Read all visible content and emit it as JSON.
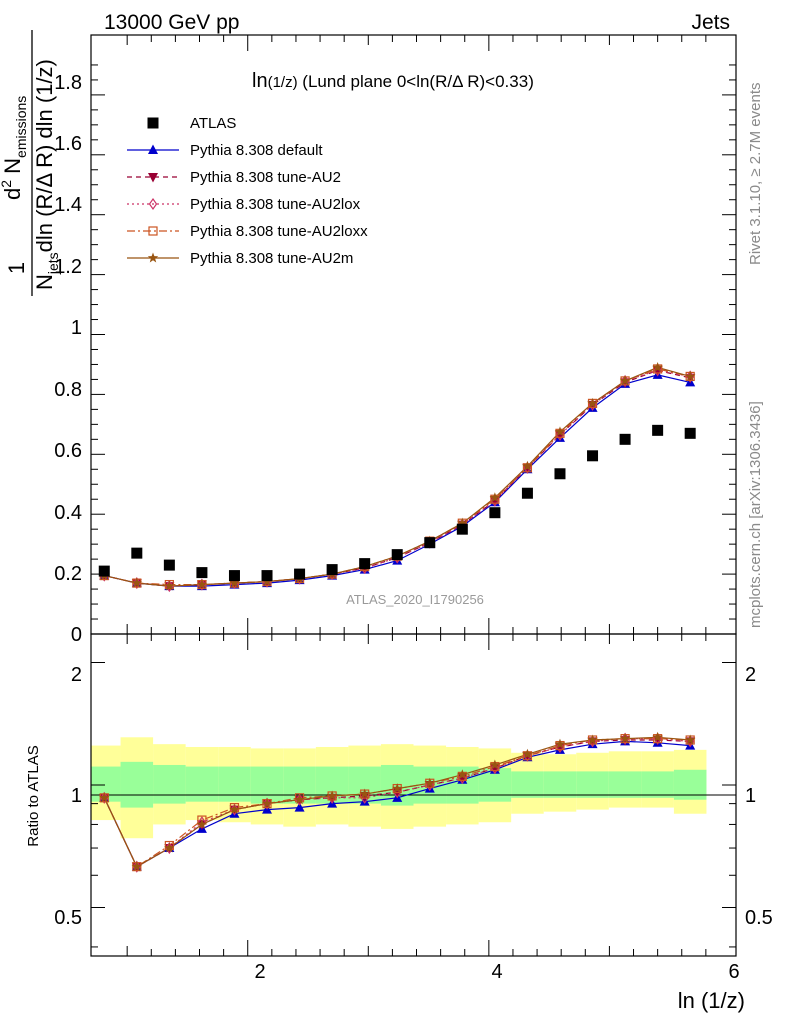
{
  "header": {
    "left": "13000 GeV pp",
    "right": "Jets"
  },
  "side_labels": {
    "rivet": "Rivet 3.1.10, ≥ 2.7M events",
    "mcplots": "mcplots.cern.ch [arXiv:1306.3436]"
  },
  "watermark": "ATLAS_2020_I1790256",
  "chart_data": {
    "type": "scatter",
    "title": "ln(1/z) (Lund plane 0<ln(R/Δ R)<0.33)",
    "title_main": "ln",
    "title_sub": "(1/z)",
    "title_rest": " (Lund plane 0<ln(R/Δ R)<0.33)",
    "xlabel": "ln (1/z)",
    "ylabel_main": "d² N_emissions / N_jets dln (R/Δ R) dln (1/z)",
    "ylabel_parts": {
      "one": "1",
      "n": "N",
      "jets": "jets",
      "dln1": "dln (R/Δ R) dln (1/z)",
      "d2": "d",
      "two": "2",
      "n2": " N",
      "emissions": "emissions"
    },
    "ylabel_ratio": "Ratio to ATLAS",
    "xlim": [
      0.7,
      6.05
    ],
    "ylim_main": [
      0,
      2.0
    ],
    "ylim_ratio": [
      0.38,
      2.35
    ],
    "x_ticks": [
      "2",
      "4",
      "6"
    ],
    "y_ticks_main": [
      "0",
      "0.2",
      "0.4",
      "0.6",
      "0.8",
      "1",
      "1.2",
      "1.4",
      "1.6",
      "1.8"
    ],
    "y_ticks_ratio": [
      "0.5",
      "1",
      "2"
    ],
    "x": [
      0.81,
      1.08,
      1.35,
      1.62,
      1.89,
      2.16,
      2.43,
      2.7,
      2.97,
      3.24,
      3.51,
      3.78,
      4.05,
      4.32,
      4.59,
      4.86,
      5.13,
      5.4,
      5.67
    ],
    "x_edges": [
      0.675,
      0.945,
      1.215,
      1.485,
      1.755,
      2.025,
      2.295,
      2.565,
      2.835,
      3.105,
      3.375,
      3.645,
      3.915,
      4.185,
      4.455,
      4.725,
      4.995,
      5.265,
      5.535,
      5.805
    ],
    "band_outer": [
      [
        0.82,
        1.25
      ],
      [
        0.74,
        1.31
      ],
      [
        0.8,
        1.26
      ],
      [
        0.82,
        1.24
      ],
      [
        0.81,
        1.24
      ],
      [
        0.8,
        1.23
      ],
      [
        0.79,
        1.23
      ],
      [
        0.8,
        1.24
      ],
      [
        0.79,
        1.25
      ],
      [
        0.78,
        1.26
      ],
      [
        0.79,
        1.25
      ],
      [
        0.8,
        1.24
      ],
      [
        0.81,
        1.23
      ],
      [
        0.85,
        1.2
      ],
      [
        0.86,
        1.19
      ],
      [
        0.87,
        1.2
      ],
      [
        0.88,
        1.21
      ],
      [
        0.88,
        1.21
      ],
      [
        0.85,
        1.22
      ]
    ],
    "band_inner": [
      [
        0.91,
        1.11
      ],
      [
        0.88,
        1.14
      ],
      [
        0.9,
        1.12
      ],
      [
        0.91,
        1.11
      ],
      [
        0.91,
        1.11
      ],
      [
        0.9,
        1.11
      ],
      [
        0.9,
        1.11
      ],
      [
        0.9,
        1.11
      ],
      [
        0.9,
        1.11
      ],
      [
        0.89,
        1.12
      ],
      [
        0.9,
        1.11
      ],
      [
        0.9,
        1.11
      ],
      [
        0.91,
        1.1
      ],
      [
        0.93,
        1.08
      ],
      [
        0.93,
        1.08
      ],
      [
        0.93,
        1.08
      ],
      [
        0.93,
        1.08
      ],
      [
        0.93,
        1.08
      ],
      [
        0.92,
        1.09
      ]
    ],
    "series": [
      {
        "name": "ATLAS",
        "color": "#000000",
        "marker": "square",
        "values": [
          0.21,
          0.27,
          0.23,
          0.205,
          0.195,
          0.195,
          0.2,
          0.215,
          0.235,
          0.265,
          0.305,
          0.35,
          0.405,
          0.47,
          0.535,
          0.595,
          0.65,
          0.68,
          0.67
        ]
      },
      {
        "name": "Pythia 8.308 default",
        "color": "#0000cc",
        "marker": "triangle-up",
        "dash": "",
        "values": [
          0.195,
          0.17,
          0.16,
          0.16,
          0.165,
          0.17,
          0.18,
          0.195,
          0.215,
          0.245,
          0.3,
          0.36,
          0.44,
          0.55,
          0.655,
          0.755,
          0.835,
          0.865,
          0.84
        ],
        "ratio": [
          0.93,
          0.63,
          0.7,
          0.78,
          0.85,
          0.87,
          0.88,
          0.9,
          0.91,
          0.93,
          0.98,
          1.03,
          1.09,
          1.17,
          1.22,
          1.26,
          1.28,
          1.27,
          1.25
        ]
      },
      {
        "name": "Pythia 8.308 tune-AU2",
        "color": "#990033",
        "marker": "triangle-down",
        "dash": "5,4",
        "values": [
          0.195,
          0.17,
          0.16,
          0.165,
          0.17,
          0.175,
          0.185,
          0.2,
          0.22,
          0.255,
          0.305,
          0.365,
          0.445,
          0.555,
          0.665,
          0.765,
          0.84,
          0.88,
          0.855
        ],
        "ratio": [
          0.93,
          0.63,
          0.7,
          0.8,
          0.87,
          0.9,
          0.92,
          0.93,
          0.94,
          0.96,
          1.0,
          1.04,
          1.1,
          1.18,
          1.24,
          1.28,
          1.29,
          1.29,
          1.28
        ]
      },
      {
        "name": "Pythia 8.308 tune-AU2lox",
        "color": "#cc3366",
        "marker": "diamond-open",
        "dash": "2,3",
        "values": [
          0.195,
          0.17,
          0.16,
          0.165,
          0.17,
          0.175,
          0.185,
          0.2,
          0.22,
          0.255,
          0.305,
          0.365,
          0.445,
          0.555,
          0.665,
          0.765,
          0.845,
          0.88,
          0.86
        ],
        "ratio": [
          0.93,
          0.63,
          0.7,
          0.81,
          0.87,
          0.9,
          0.92,
          0.93,
          0.93,
          0.96,
          1.0,
          1.04,
          1.1,
          1.18,
          1.24,
          1.28,
          1.3,
          1.3,
          1.28
        ]
      },
      {
        "name": "Pythia 8.308 tune-AU2loxx",
        "color": "#cc5522",
        "marker": "square-open",
        "dash": "8,3,2,3",
        "values": [
          0.195,
          0.17,
          0.165,
          0.165,
          0.17,
          0.175,
          0.185,
          0.2,
          0.225,
          0.26,
          0.31,
          0.37,
          0.45,
          0.555,
          0.67,
          0.77,
          0.845,
          0.885,
          0.86
        ],
        "ratio": [
          0.93,
          0.63,
          0.71,
          0.82,
          0.88,
          0.9,
          0.93,
          0.94,
          0.95,
          0.98,
          1.01,
          1.05,
          1.11,
          1.18,
          1.25,
          1.29,
          1.3,
          1.3,
          1.29
        ]
      },
      {
        "name": "Pythia 8.308 tune-AU2m",
        "color": "#995511",
        "marker": "star",
        "dash": "",
        "values": [
          0.195,
          0.17,
          0.16,
          0.165,
          0.17,
          0.175,
          0.185,
          0.2,
          0.225,
          0.26,
          0.31,
          0.37,
          0.455,
          0.56,
          0.675,
          0.77,
          0.845,
          0.89,
          0.86
        ],
        "ratio": [
          0.93,
          0.63,
          0.7,
          0.8,
          0.87,
          0.9,
          0.92,
          0.94,
          0.95,
          0.98,
          1.01,
          1.06,
          1.12,
          1.19,
          1.26,
          1.29,
          1.3,
          1.31,
          1.29
        ]
      }
    ]
  }
}
